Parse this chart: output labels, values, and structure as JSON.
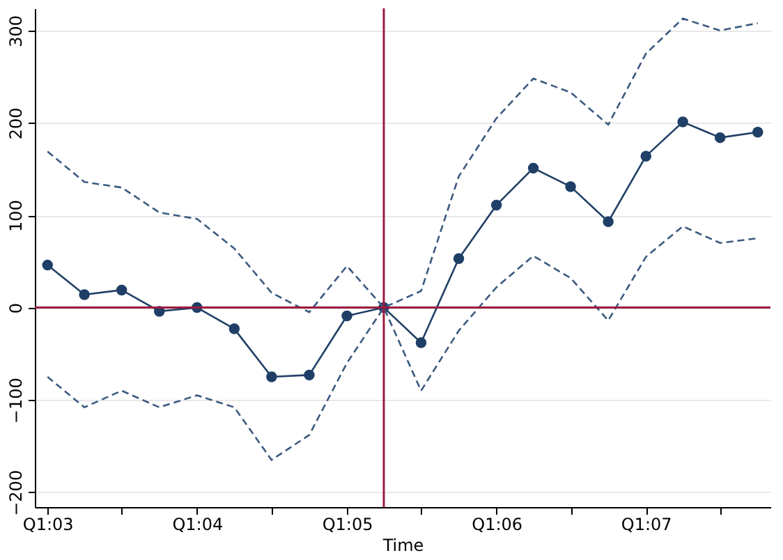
{
  "chart_data": {
    "type": "line",
    "xlabel": "Time",
    "x": [
      "2003-01",
      "2003-04",
      "2003-07",
      "2003-10",
      "2004-01",
      "2004-04",
      "2004-07",
      "2004-10",
      "2005-01",
      "2005-04",
      "2005-07",
      "2005-10",
      "2006-01",
      "2006-04",
      "2006-07",
      "2006-10",
      "2007-01",
      "2007-04",
      "2007-07",
      "2007-10"
    ],
    "series": [
      {
        "color": "#1f3f66",
        "marker": "circle",
        "line_style": "solid",
        "values": [
          46,
          14,
          19,
          -4,
          0,
          -23,
          -75,
          -73,
          -9,
          0,
          -38,
          53,
          111,
          151,
          131,
          93,
          164,
          201,
          184,
          190
        ]
      },
      {
        "color": "#3b5a80",
        "marker": "none",
        "line_style": "dashed",
        "values": [
          169,
          136,
          130,
          103,
          96,
          64,
          16,
          -5,
          45,
          0,
          18,
          142,
          205,
          248,
          233,
          198,
          275,
          313,
          300,
          308
        ]
      },
      {
        "color": "#3b5a80",
        "marker": "none",
        "line_style": "dashed",
        "values": [
          -75,
          -108,
          -90,
          -108,
          -95,
          -108,
          -165,
          -138,
          -60,
          0,
          -90,
          -25,
          22,
          56,
          32,
          -14,
          55,
          88,
          70,
          75
        ]
      }
    ],
    "xlim": [
      "2002-12",
      "2007-11"
    ],
    "xticks": [
      {
        "value": "2003-01",
        "label": "Q1:03"
      },
      {
        "value": "2003-07",
        "label": null
      },
      {
        "value": "2004-01",
        "label": "Q1:04"
      },
      {
        "value": "2004-07",
        "label": null
      },
      {
        "value": "2005-01",
        "label": "Q1:05"
      },
      {
        "value": "2005-07",
        "label": null
      },
      {
        "value": "2006-01",
        "label": "Q1:06"
      },
      {
        "value": "2006-07",
        "label": null
      },
      {
        "value": "2007-01",
        "label": "Q1:07"
      },
      {
        "value": "2007-07",
        "label": null
      }
    ],
    "ylim": [
      -216,
      324
    ],
    "yticks": [
      -200,
      -100,
      0,
      100,
      200,
      300
    ],
    "grid": "y",
    "ref_lines": [
      {
        "axis": "y",
        "value": 0,
        "color": "#9b1b3f"
      },
      {
        "axis": "x",
        "value": "2005-04",
        "color": "#9b1b3f"
      }
    ]
  }
}
